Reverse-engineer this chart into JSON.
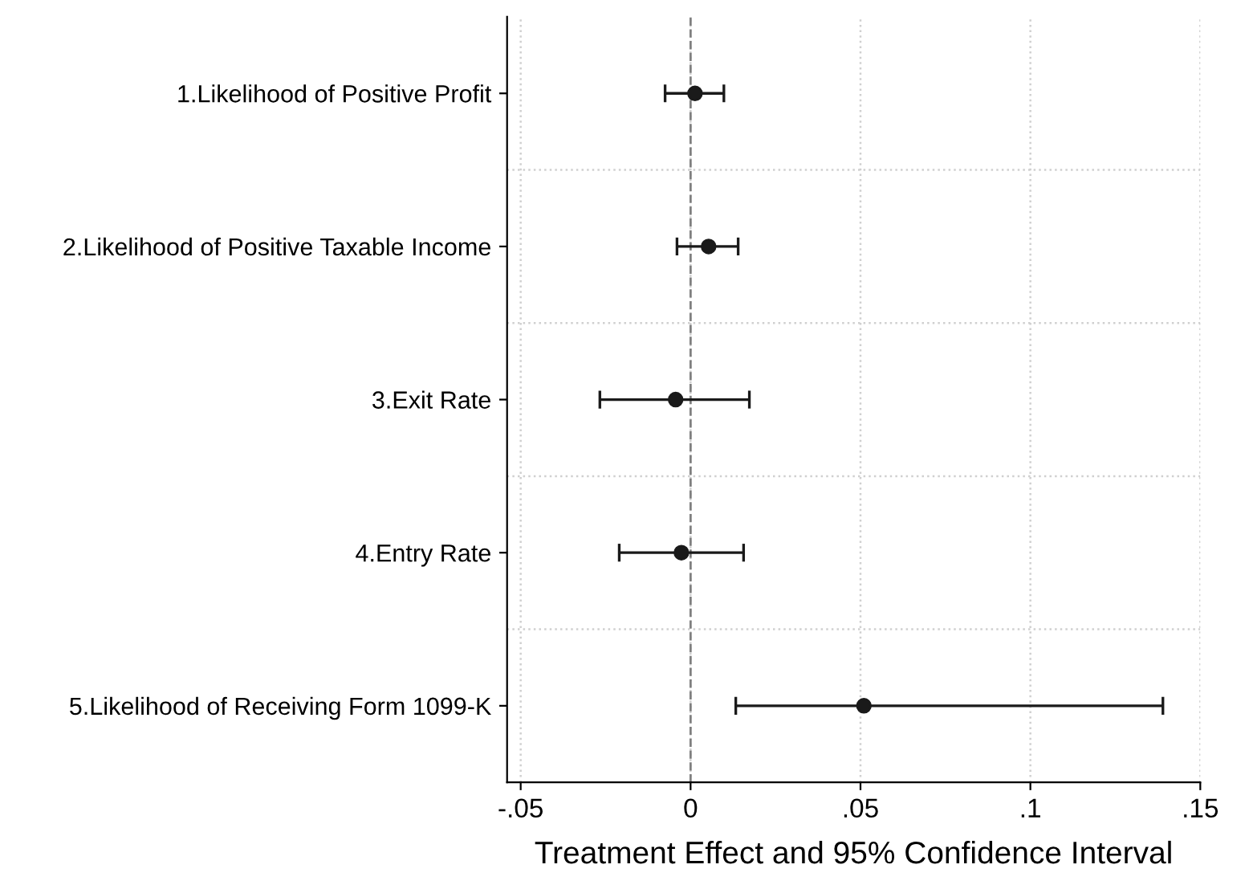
{
  "chart_data": {
    "type": "scatter",
    "orientation": "horizontal",
    "xlabel": "Treatment Effect and 95% Confidence Interval",
    "categories": [
      "1.Likelihood of Positive Profit",
      "2.Likelihood of Positive Taxable Income",
      "3.Exit Rate",
      "4.Entry Rate",
      "5.Likelihood of Receiving Form 1099-K"
    ],
    "values": [
      0.0013,
      0.0053,
      -0.0044,
      -0.0027,
      0.051
    ],
    "errors": [
      [
        -0.0075,
        0.0098
      ],
      [
        -0.004,
        0.014
      ],
      [
        -0.0267,
        0.0173
      ],
      [
        -0.021,
        0.0156
      ],
      [
        0.0133,
        0.139
      ]
    ],
    "color": "#1a1a1a",
    "marker": "circle",
    "xlim": [
      -0.054,
      0.15
    ],
    "xticks": [
      {
        "value": -0.05,
        "label": "-.05"
      },
      0,
      {
        "value": 0.05,
        "label": ".05"
      },
      {
        "value": 0.1,
        "label": ".1"
      },
      {
        "value": 0.15,
        "label": ".15"
      }
    ],
    "ref_lines": [
      {
        "axis": "x",
        "value": 0,
        "color": "#808080",
        "line_style": "dashed"
      }
    ],
    "grid": true
  }
}
